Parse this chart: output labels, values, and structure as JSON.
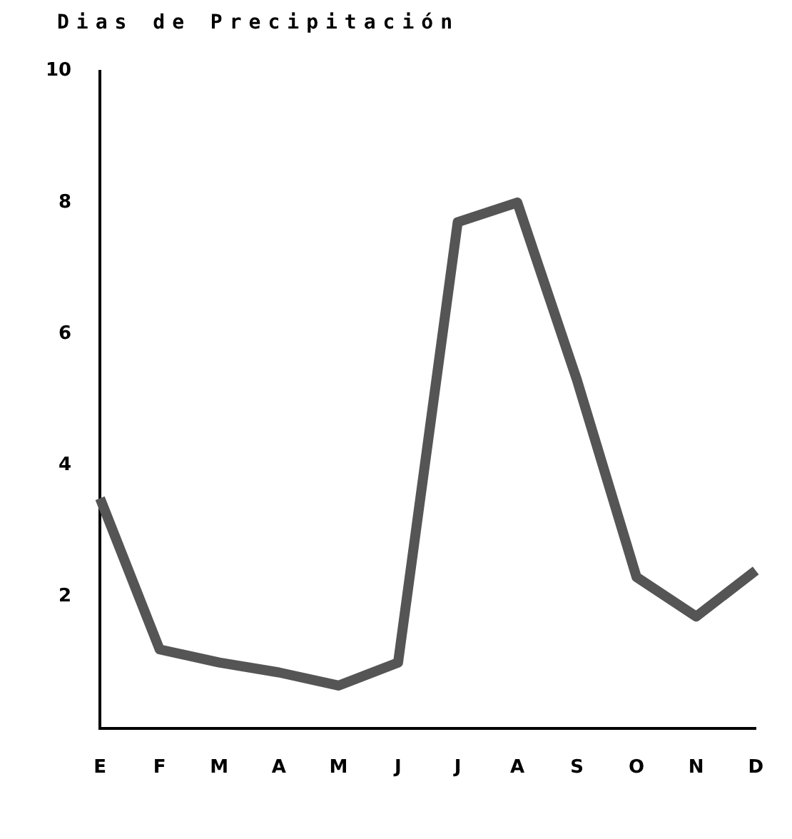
{
  "chart_data": {
    "type": "line",
    "title": "Dias de Precipitación",
    "categories": [
      "E",
      "F",
      "M",
      "A",
      "M",
      "J",
      "J",
      "A",
      "S",
      "O",
      "N",
      "D"
    ],
    "series": [
      {
        "color": "#555555",
        "values": [
          3.5,
          1.2,
          1.0,
          0.85,
          0.65,
          1.0,
          7.7,
          8.0,
          5.3,
          2.3,
          1.7,
          2.4
        ]
      }
    ],
    "ylim": [
      0,
      10
    ],
    "yticks": [
      2,
      4,
      6,
      8,
      10
    ],
    "grid": false,
    "legend": false,
    "marker": "none",
    "line_style": "solid"
  }
}
